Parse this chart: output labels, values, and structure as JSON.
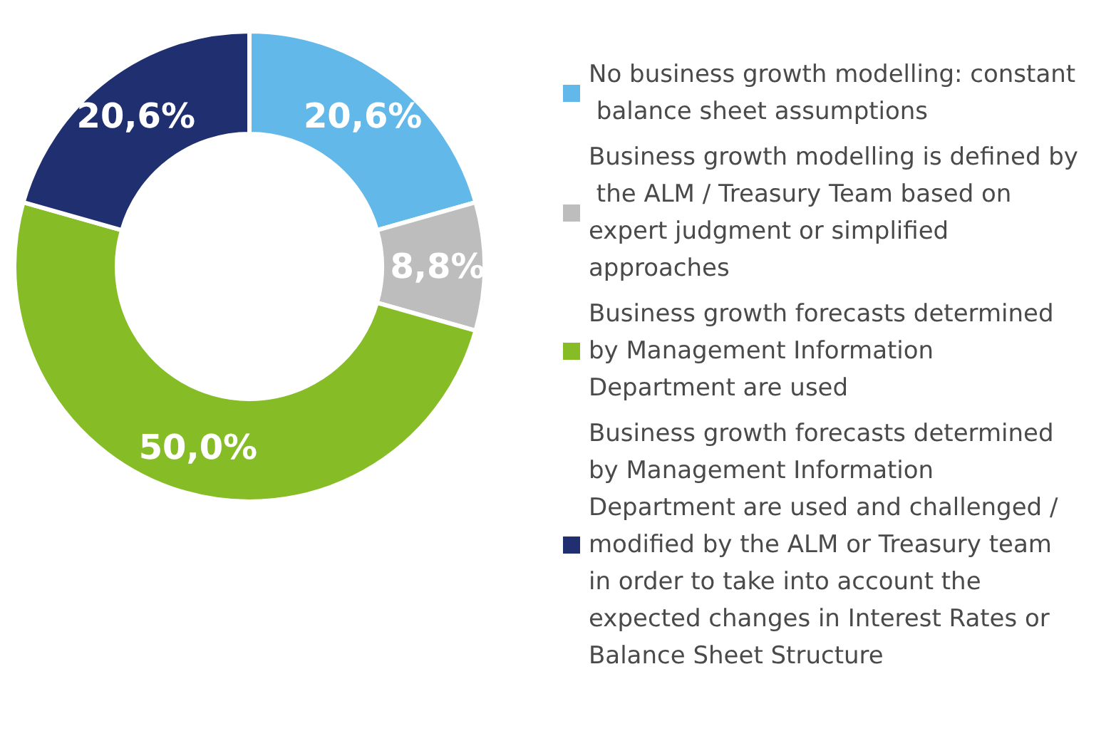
{
  "chart_data": {
    "type": "donut",
    "categories": [
      "No business growth modelling: constant balance sheet assumptions",
      "Business growth modelling is defined by the ALM / Treasury Team based on expert judgment or simplified approaches",
      "Business growth forecasts determined by Management Information Department are used",
      "Business growth forecasts determined by Management Information Department are used and challenged / modified by the ALM or Treasury team in order to take into account the expected changes in Interest Rates or Balance Sheet Structure"
    ],
    "values": [
      20.6,
      8.8,
      50.0,
      20.6
    ],
    "colors": [
      "#62b9e9",
      "#bdbdbd",
      "#86bc25",
      "#1f2f6f"
    ],
    "value_labels": [
      "20,6%",
      "8,8%",
      "50,0%",
      "20,6%"
    ],
    "legend": "right"
  }
}
